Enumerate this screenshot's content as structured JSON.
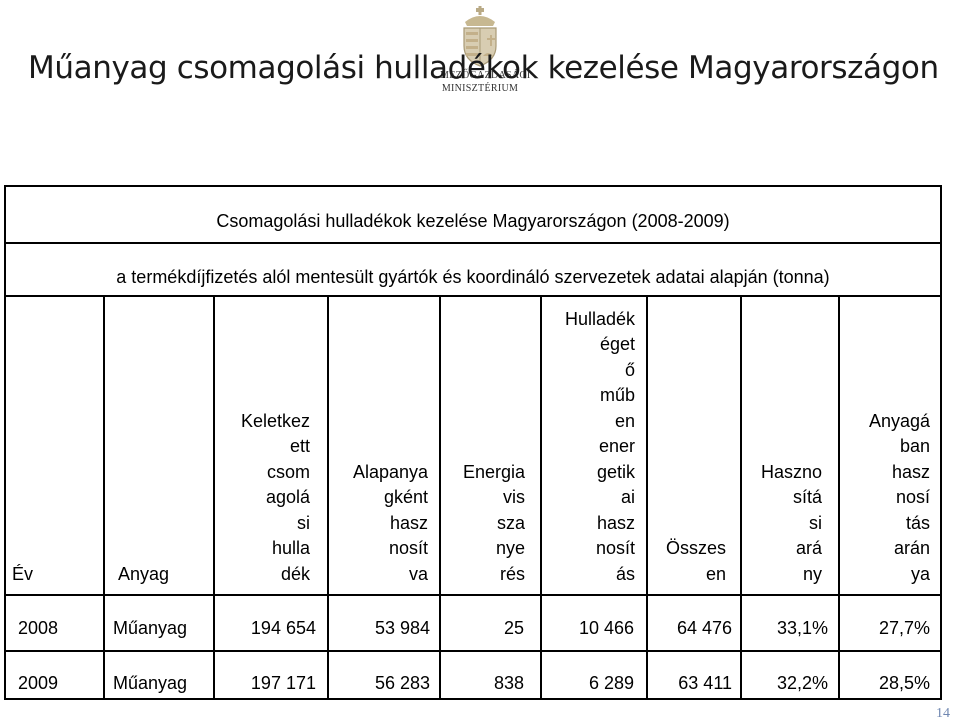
{
  "slide": {
    "title": "Műanyag csomagolási hulladékok kezelése Magyarországon",
    "page_number": "14"
  },
  "logo": {
    "icon": "hungarian-coat-of-arms-icon",
    "text_line1": "MEZŐGAZDASÁGI",
    "text_line2": "MINISZTÉRIUM"
  },
  "table": {
    "caption1": "Csomagolási hulladékok kezelése Magyarországon (2008-2009)",
    "caption2": "a termékdíjfizetés alól mentesült gyártók és koordináló szervezetek adatai alapján (tonna)",
    "headers": [
      "Év",
      "Anyag",
      "Keletkez\nett\ncsom\nagolá\nsi\nhulla\ndék",
      "Alapanya\ngként\nhasz\nnosít\nva",
      "Energia\nvis\nsza\nnye\nrés",
      "Hulladék\néget\nő\nműb\nen\nener\ngetik\nai\nhasz\nnosít\nás",
      "Összes\nen",
      "Haszno\nsítá\nsi\nará\nny",
      "Anyagá\nban\nhasz\nnosí\ntás\nlarán\nya"
    ],
    "rows": [
      [
        "2008",
        "Műanyag",
        "194 654",
        "53 984",
        "25",
        "10 466",
        "64 476",
        "33,1%",
        "27,7%"
      ],
      [
        "2009",
        "Műanyag",
        "197 171",
        "56 283",
        "838",
        "6 289",
        "63 411",
        "32,2%",
        "28,5%"
      ]
    ]
  }
}
